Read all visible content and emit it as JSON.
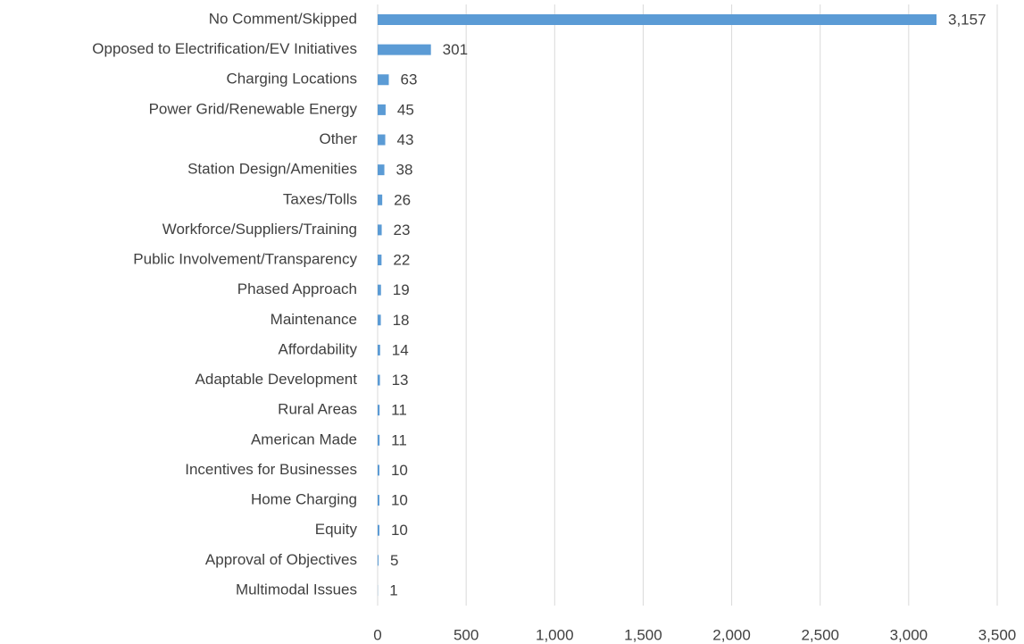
{
  "chart_data": {
    "type": "barh",
    "categories": [
      "No Comment/Skipped",
      "Opposed to Electrification/EV Initiatives",
      "Charging Locations",
      "Power Grid/Renewable Energy",
      "Other",
      "Station Design/Amenities",
      "Taxes/Tolls",
      "Workforce/Suppliers/Training",
      "Public Involvement/Transparency",
      "Phased Approach",
      "Maintenance",
      "Affordability",
      "Adaptable Development",
      "Rural Areas",
      "American Made",
      "Incentives for Businesses",
      "Home Charging",
      "Equity",
      "Approval of Objectives",
      "Multimodal Issues"
    ],
    "values": [
      3157,
      301,
      63,
      45,
      43,
      38,
      26,
      23,
      22,
      19,
      18,
      14,
      13,
      11,
      11,
      10,
      10,
      10,
      5,
      1
    ],
    "value_labels": [
      "3,157",
      "301",
      "63",
      "45",
      "43",
      "38",
      "26",
      "23",
      "22",
      "19",
      "18",
      "14",
      "13",
      "11",
      "11",
      "10",
      "10",
      "10",
      "5",
      "1"
    ],
    "color": "#5b9bd5",
    "xlim": [
      0,
      3500
    ],
    "xticks": [
      0,
      500,
      {
        "value": 1000,
        "label": "1,000"
      },
      {
        "value": 1500,
        "label": "1,500"
      },
      {
        "value": 2000,
        "label": "2,000"
      },
      {
        "value": 2500,
        "label": "2,500"
      },
      {
        "value": 3000,
        "label": "3,000"
      },
      {
        "value": 3500,
        "label": "3,500"
      }
    ],
    "grid": true
  }
}
